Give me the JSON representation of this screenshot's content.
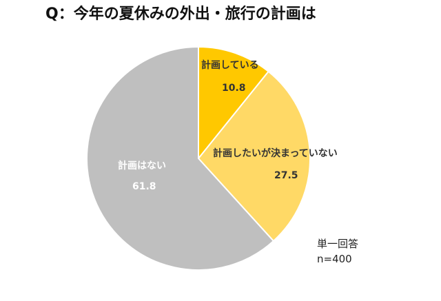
{
  "chart_data": {
    "type": "pie",
    "title": "Q：今年の夏休みの外出・旅行の計画は",
    "categories": [
      "計画している",
      "計画したいが決まっていない",
      "計画はない"
    ],
    "values": [
      10.8,
      27.5,
      61.8
    ],
    "colors": [
      "#FFC800",
      "#FFD966",
      "#BFBFBF"
    ],
    "start_angle_deg": 0,
    "direction": "clockwise",
    "annotations": [
      "単一回答",
      "n=400"
    ]
  },
  "title": "Q：今年の夏休みの外出・旅行の計画は",
  "slices": [
    {
      "label": "計画している",
      "value": "10.8"
    },
    {
      "label": "計画したいが決まっていない",
      "value": "27.5"
    },
    {
      "label": "計画はない",
      "value": "61.8"
    }
  ],
  "note": {
    "line1": "単一回答",
    "line2": "n=400"
  }
}
